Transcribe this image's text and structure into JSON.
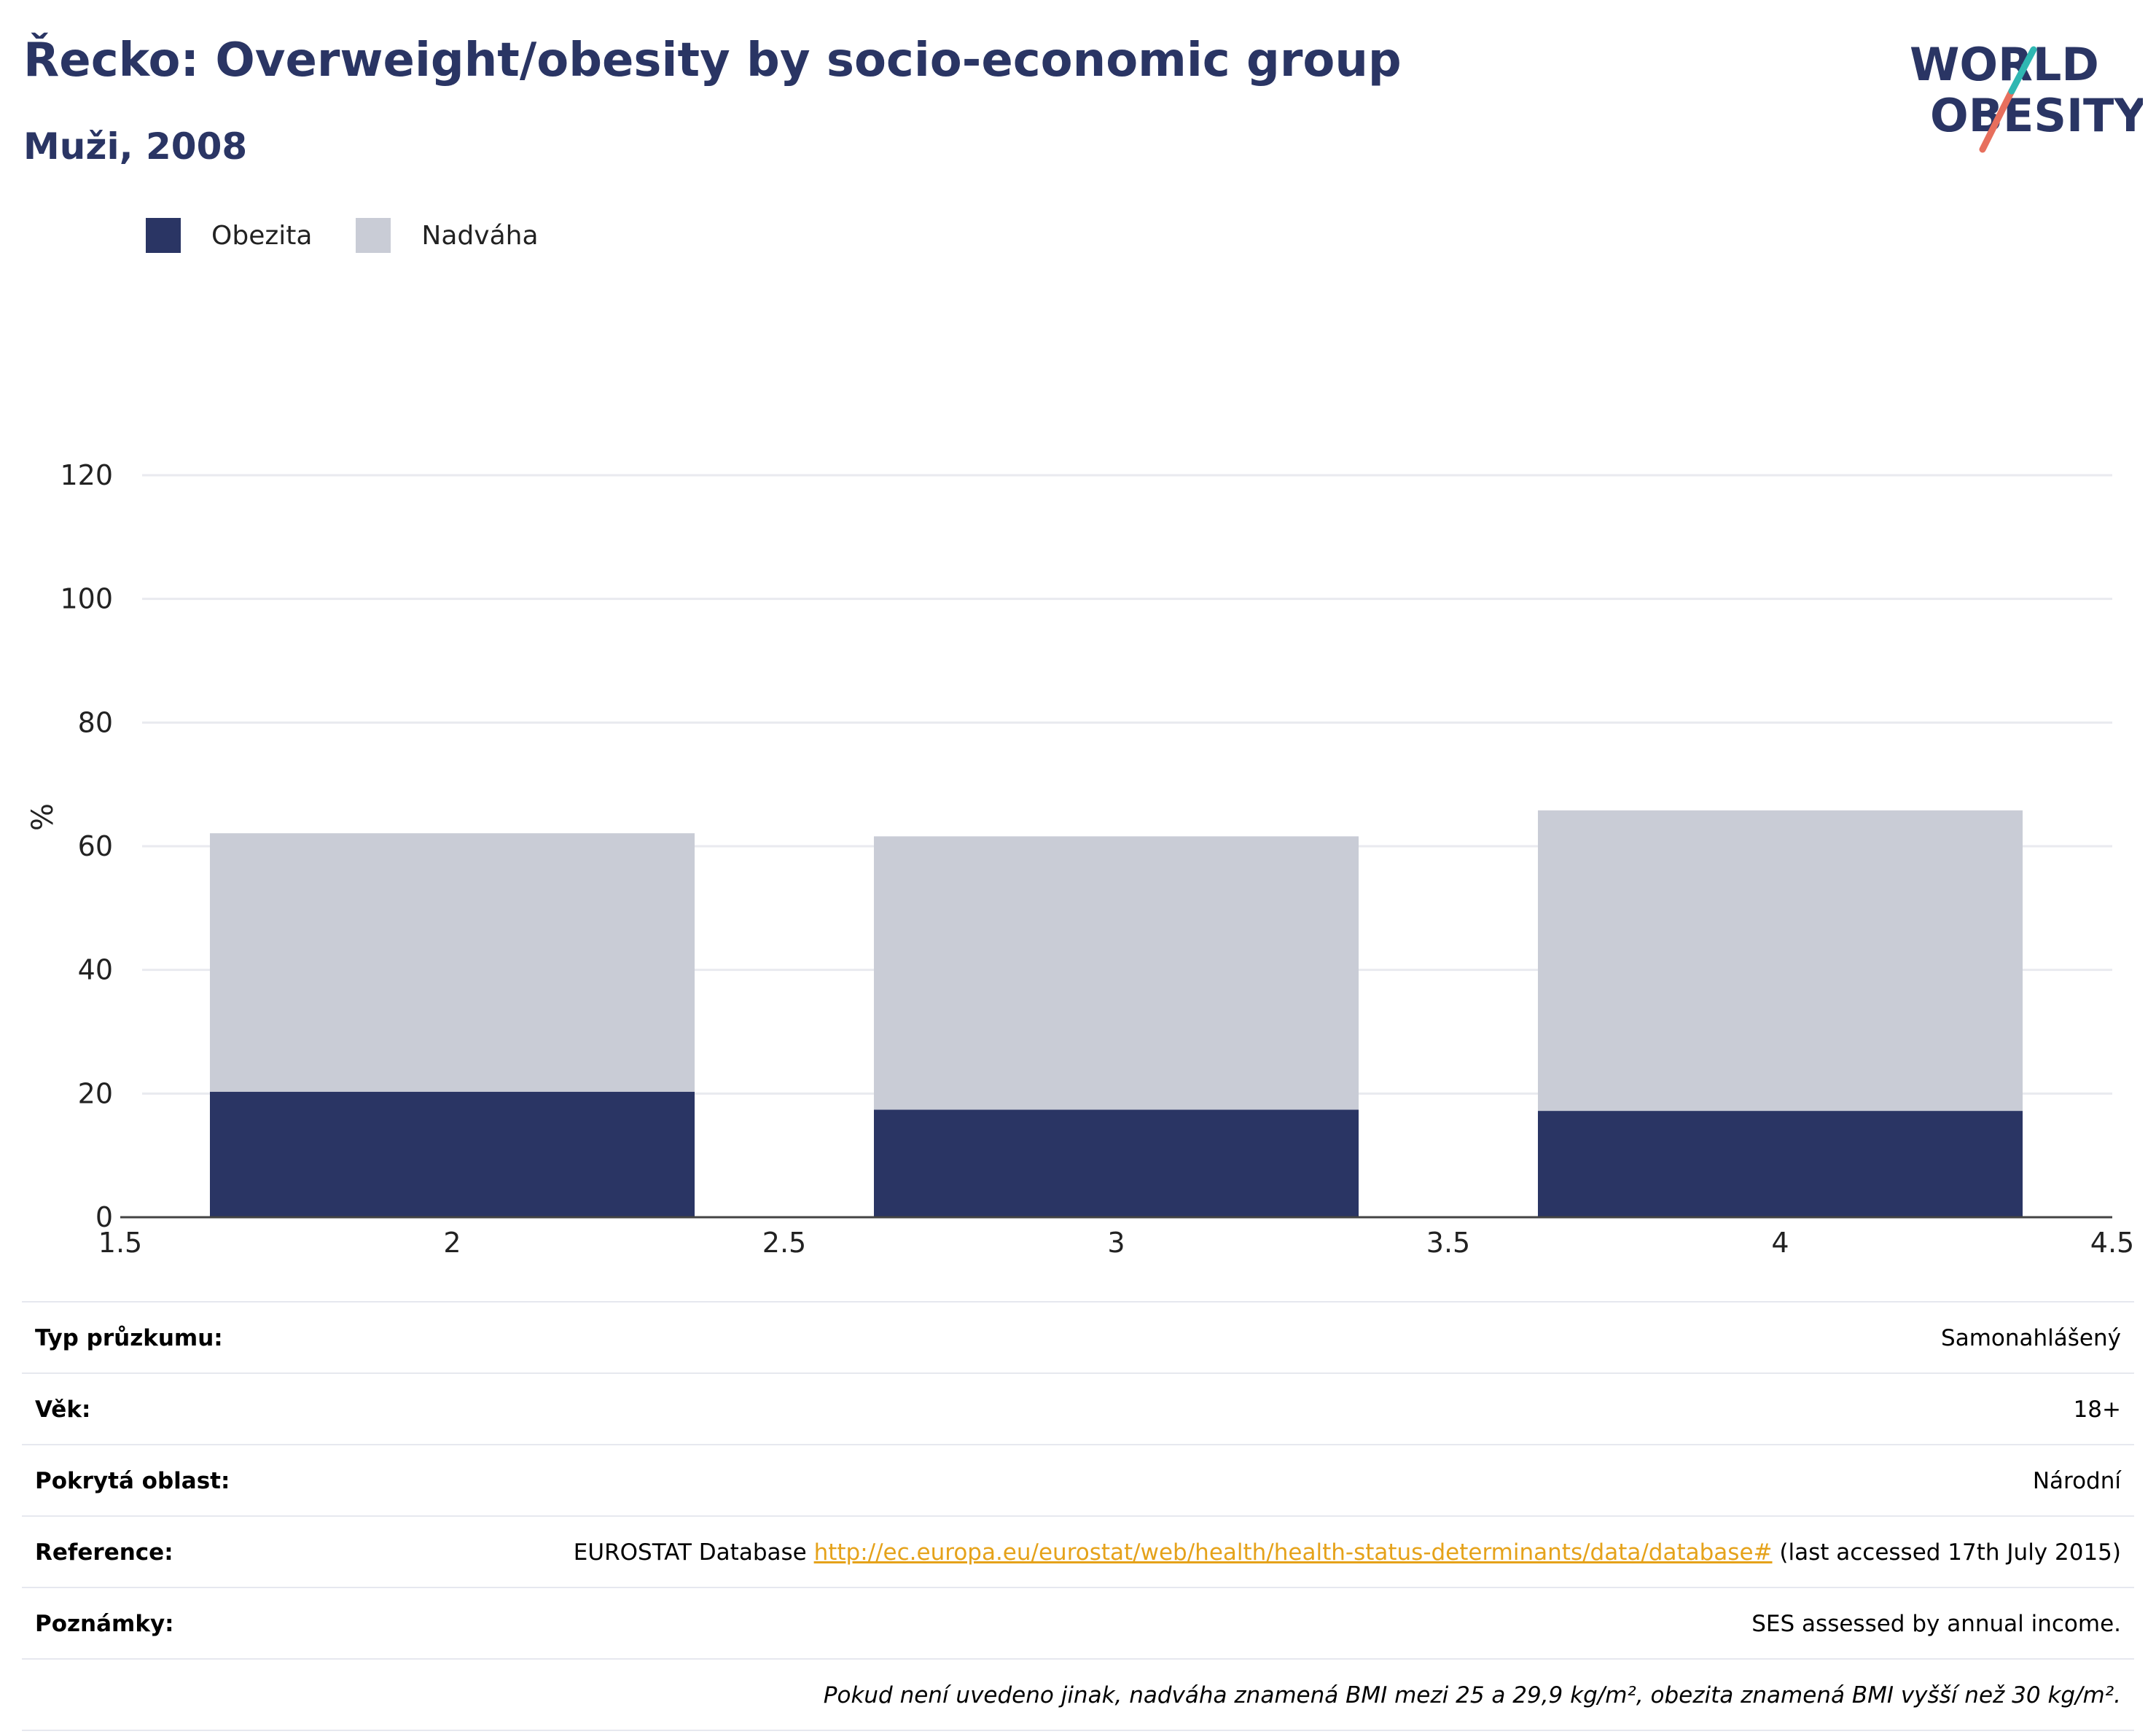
{
  "header": {
    "title": "Řecko: Overweight/obesity by socio-economic group",
    "subtitle": "Muži, 2008"
  },
  "logo": {
    "line1": "WORLD",
    "line2": "OBESITY"
  },
  "colors": {
    "obesity": "#2a3564",
    "overweight": "#c9ccd6",
    "accent_teal": "#2fb7b2",
    "accent_coral": "#e76f5d",
    "link": "#e5a21a"
  },
  "legend": [
    {
      "label": "Obezita",
      "color": "#2a3564"
    },
    {
      "label": "Nadváha",
      "color": "#c9ccd6"
    }
  ],
  "chart_data": {
    "type": "bar",
    "stacked": true,
    "x": [
      2,
      3,
      4
    ],
    "bar_width": 0.73,
    "series": [
      {
        "name": "Obezita",
        "values": [
          20.3,
          17.4,
          17.2
        ]
      },
      {
        "name": "Nadváha",
        "values": [
          41.8,
          44.2,
          48.6
        ]
      }
    ],
    "ylabel": "%",
    "ylim": [
      0,
      120
    ],
    "yticks": [
      0,
      20,
      40,
      60,
      80,
      100,
      120
    ],
    "xlim": [
      1.5,
      4.5
    ],
    "xticks": [
      "1.5",
      "2",
      "2.5",
      "3",
      "3.5",
      "4",
      "4.5"
    ],
    "grid": true,
    "legend_position": "top-left"
  },
  "info": [
    {
      "label": "Typ průzkumu:",
      "value": "Samonahlášený"
    },
    {
      "label": "Věk:",
      "value": "18+"
    },
    {
      "label": "Pokrytá oblast:",
      "value": "Národní"
    },
    {
      "label": "Reference:",
      "value_prefix": "EUROSTAT Database ",
      "link": "http://ec.europa.eu/eurostat/web/health/health-status-determinants/data/database#",
      "value_suffix": " (last accessed 17th July 2015)"
    },
    {
      "label": "Poznámky:",
      "value": "SES assessed by annual income."
    }
  ],
  "footnote": "Pokud není uvedeno jinak, nadváha znamená BMI mezi 25 a 29,9 kg/m², obezita znamená BMI vyšší než 30 kg/m²."
}
